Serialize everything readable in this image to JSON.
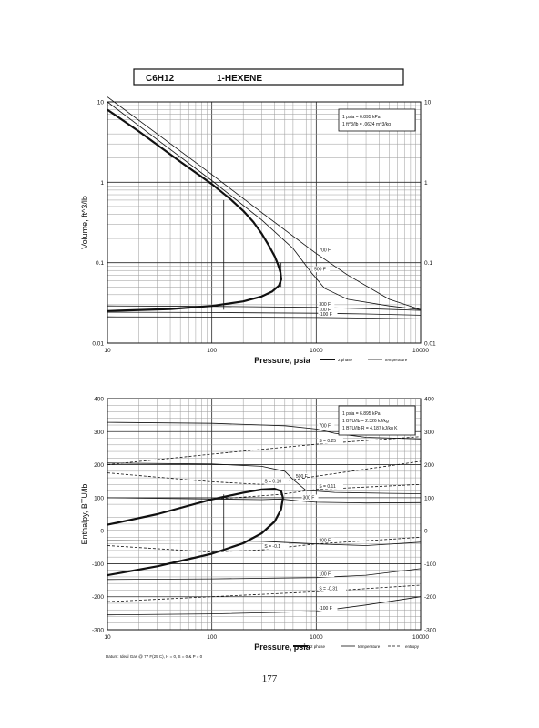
{
  "header": {
    "formula": "C6H12",
    "name": "1-HEXENE"
  },
  "page_number": "177",
  "footer_note": "Datum: Ideal Gas @ 77 F(25 C), H = 0, S = 0 & P = 0",
  "colors": {
    "ink": "#111111",
    "grid_major": "#2a2a2a",
    "grid_minor": "#9a9a9a"
  },
  "chart_data": [
    {
      "type": "line",
      "xlabel": "Pressure,  psia",
      "ylabel": "Volume, ft^3/lb",
      "xscale": "log",
      "yscale": "log",
      "xlim": [
        10,
        10000
      ],
      "ylim": [
        0.01,
        10
      ],
      "x_ticks": [
        "10",
        "100",
        "1000",
        "10000"
      ],
      "y_ticks": [
        "0.01",
        "0.1",
        "1",
        "10"
      ],
      "conversion_box": [
        "1 psia  =  6.895 kPa",
        "1 ft^3/lb  =  .0624 m^3/kg"
      ],
      "legend": [
        "2 phase",
        "temperature"
      ],
      "series": [
        {
          "name": "2 phase",
          "points": [
            [
              10,
              8.0
            ],
            [
              20,
              4.3
            ],
            [
              50,
              1.8
            ],
            [
              100,
              0.95
            ],
            [
              150,
              0.62
            ],
            [
              200,
              0.44
            ],
            [
              250,
              0.32
            ],
            [
              300,
              0.23
            ],
            [
              350,
              0.165
            ],
            [
              400,
              0.12
            ],
            [
              430,
              0.095
            ],
            [
              455,
              0.075
            ],
            [
              462,
              0.062
            ],
            [
              440,
              0.052
            ],
            [
              380,
              0.044
            ],
            [
              300,
              0.038
            ],
            [
              200,
              0.033
            ],
            [
              100,
              0.029
            ],
            [
              40,
              0.0265
            ],
            [
              10,
              0.025
            ]
          ]
        },
        {
          "name": "700 F",
          "label": "700 F",
          "points": [
            [
              10,
              11.5
            ],
            [
              30,
              4.0
            ],
            [
              100,
              1.25
            ],
            [
              300,
              0.42
            ],
            [
              1000,
              0.13
            ],
            [
              2000,
              0.07
            ],
            [
              5000,
              0.035
            ],
            [
              10000,
              0.026
            ]
          ]
        },
        {
          "name": "500 F",
          "label": "500 F",
          "points": [
            [
              10,
              10.0
            ],
            [
              30,
              3.4
            ],
            [
              100,
              1.05
            ],
            [
              300,
              0.34
            ],
            [
              600,
              0.15
            ],
            [
              900,
              0.075
            ],
            [
              1200,
              0.048
            ],
            [
              2000,
              0.035
            ],
            [
              5000,
              0.029
            ],
            [
              10000,
              0.026
            ]
          ]
        },
        {
          "name": "300 F",
          "label": "300 F",
          "points": [
            [
              10,
              0.029
            ],
            [
              100,
              0.0286
            ],
            [
              1000,
              0.0278
            ],
            [
              3000,
              0.0268
            ],
            [
              10000,
              0.0255
            ]
          ]
        },
        {
          "name": "100 F",
          "label": "100 F",
          "points": [
            [
              10,
              0.0242
            ],
            [
              100,
              0.024
            ],
            [
              1000,
              0.0235
            ],
            [
              3000,
              0.023
            ],
            [
              10000,
              0.0222
            ]
          ]
        },
        {
          "name": "-100 F",
          "label": "-100 F",
          "points": [
            [
              10,
              0.0212
            ],
            [
              100,
              0.0211
            ],
            [
              1000,
              0.0208
            ],
            [
              3000,
              0.0205
            ],
            [
              10000,
              0.02
            ]
          ]
        }
      ],
      "vertical_lines": [
        {
          "x": 130,
          "y_from": 0.026,
          "y_to": 0.6
        },
        {
          "x": 460,
          "y_from": 0.05,
          "y_to": 0.1
        }
      ]
    },
    {
      "type": "line",
      "xlabel": "Pressure,  psia",
      "ylabel": "Enthalpy, BTU/lb",
      "xscale": "log",
      "yscale": "linear",
      "xlim": [
        10,
        10000
      ],
      "ylim": [
        -300,
        400
      ],
      "x_ticks": [
        "10",
        "100",
        "1000",
        "10000"
      ],
      "y_ticks": [
        "-300",
        "-200",
        "-100",
        "0",
        "100",
        "200",
        "300",
        "400"
      ],
      "conversion_box": [
        "1 psia  =  6.895 kPa",
        "1 BTU/lb  =  2.326 kJ/kg",
        "1 BTU/lb R  =  4.187 kJ/kg K"
      ],
      "legend": [
        "2 phase",
        "temperature",
        "entropy"
      ],
      "series": [
        {
          "name": "2 phase",
          "points": [
            [
              10,
              -135
            ],
            [
              30,
              -108
            ],
            [
              100,
              -70
            ],
            [
              200,
              -38
            ],
            [
              300,
              -8
            ],
            [
              400,
              28
            ],
            [
              460,
              65
            ],
            [
              480,
              100
            ],
            [
              460,
              120
            ],
            [
              400,
              127
            ],
            [
              300,
              125
            ],
            [
              200,
              115
            ],
            [
              100,
              95
            ],
            [
              30,
              50
            ],
            [
              10,
              18
            ]
          ]
        },
        {
          "name": "700 F",
          "label": "700 F",
          "points": [
            [
              10,
              328
            ],
            [
              100,
              325
            ],
            [
              500,
              318
            ],
            [
              1000,
              308
            ],
            [
              1500,
              295
            ],
            [
              3000,
              283
            ],
            [
              10000,
              278
            ]
          ]
        },
        {
          "name": "500 F",
          "label": "500 F",
          "points": [
            [
              10,
              205
            ],
            [
              100,
              202
            ],
            [
              300,
              195
            ],
            [
              500,
              180
            ],
            [
              600,
              155
            ],
            [
              800,
              122
            ],
            [
              1500,
              116
            ],
            [
              5000,
              113
            ],
            [
              10000,
              112
            ]
          ]
        },
        {
          "name": "300 F",
          "label": "300 F",
          "points": [
            [
              10,
              100
            ],
            [
              100,
              96
            ],
            [
              300,
              94
            ],
            [
              460,
              96
            ],
            [
              700,
              90
            ],
            [
              1000,
              86
            ],
            [
              3000,
              84
            ],
            [
              10000,
              85
            ]
          ]
        },
        {
          "name": "300 F (liquid)",
          "label": "300 F",
          "points": [
            [
              10,
              -30
            ],
            [
              300,
              -32
            ],
            [
              1000,
              -40
            ],
            [
              3000,
              -45
            ],
            [
              10000,
              -35
            ]
          ]
        },
        {
          "name": "100 F",
          "label": "100 F",
          "points": [
            [
              10,
              -148
            ],
            [
              100,
              -146
            ],
            [
              1000,
              -142
            ],
            [
              3000,
              -135
            ],
            [
              10000,
              -115
            ]
          ]
        },
        {
          "name": "-100 F",
          "label": "-100 F",
          "points": [
            [
              10,
              -255
            ],
            [
              100,
              -252
            ],
            [
              1000,
              -245
            ],
            [
              3000,
              -225
            ],
            [
              10000,
              -200
            ]
          ]
        },
        {
          "name": "S = 0.25",
          "label": "S = 0.25",
          "style": "entropy",
          "points": [
            [
              10,
              200
            ],
            [
              100,
              232
            ],
            [
              1000,
              262
            ],
            [
              10000,
              285
            ]
          ]
        },
        {
          "name": "S = 0.10",
          "label": "S = 0.10",
          "style": "entropy",
          "points": [
            [
              10,
              175
            ],
            [
              100,
              148
            ],
            [
              300,
              140
            ],
            [
              1000,
              165
            ],
            [
              10000,
              210
            ]
          ]
        },
        {
          "name": "S = 0.11",
          "label": "S = 0.11",
          "style": "entropy",
          "points": [
            [
              100,
              95
            ],
            [
              460,
              110
            ],
            [
              1000,
              125
            ],
            [
              10000,
              140
            ]
          ]
        },
        {
          "name": "S = -0.1",
          "label": "S = -0.1",
          "style": "entropy",
          "points": [
            [
              10,
              -45
            ],
            [
              100,
              -65
            ],
            [
              300,
              -58
            ],
            [
              1000,
              -40
            ],
            [
              10000,
              -20
            ]
          ]
        },
        {
          "name": "S = -0.31",
          "label": "S = -0.31",
          "style": "entropy",
          "points": [
            [
              10,
              -215
            ],
            [
              100,
              -200
            ],
            [
              1000,
              -185
            ],
            [
              10000,
              -165
            ]
          ]
        }
      ],
      "vertical_lines": [
        {
          "x": 130,
          "y_from": -60,
          "y_to": 110
        }
      ]
    }
  ]
}
